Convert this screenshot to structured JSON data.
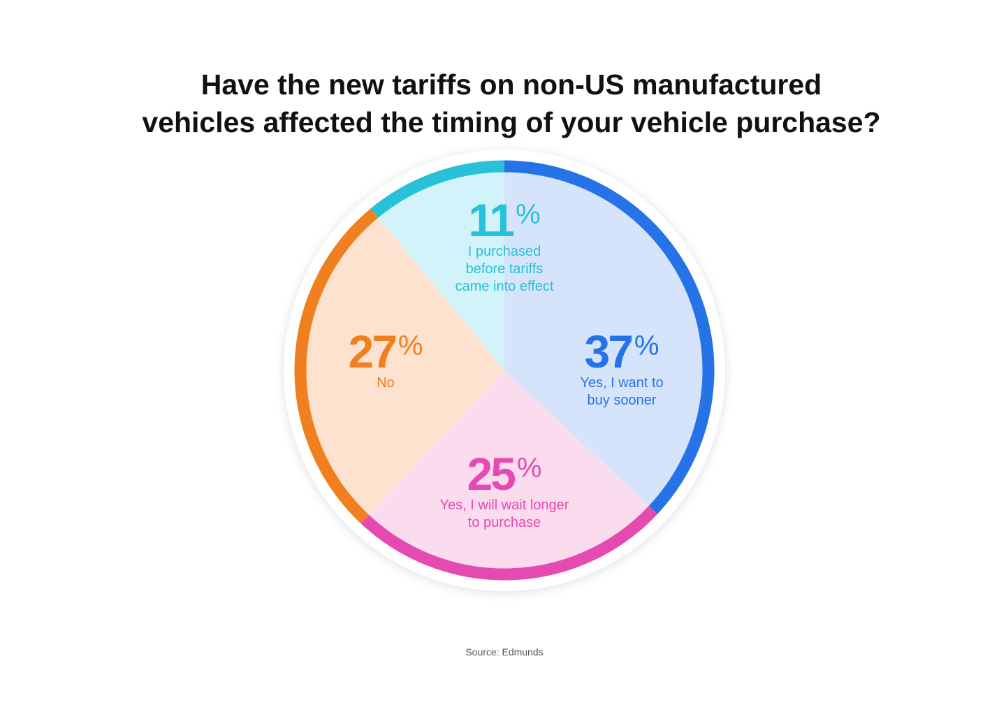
{
  "chart_data": {
    "type": "pie",
    "title": [
      "Have the new tariffs on non-US manufactured",
      "vehicles affected the timing of your vehicle purchase?"
    ],
    "start": "top, clockwise",
    "slices": [
      {
        "label": "Yes, I want to buy sooner",
        "label_lines": [
          "Yes, I want to",
          "buy sooner"
        ],
        "value": 37,
        "display": "37",
        "color": "#2673e8",
        "fill": "#d6e4fb"
      },
      {
        "label": "Yes, I will wait longer to purchase",
        "label_lines": [
          "Yes, I will wait longer",
          "to purchase"
        ],
        "value": 25,
        "display": "25",
        "color": "#e54ab0",
        "fill": "#fbdcef"
      },
      {
        "label": "No",
        "label_lines": [
          "No"
        ],
        "value": 27,
        "display": "27",
        "color": "#f07f1f",
        "fill": "#fde3cf"
      },
      {
        "label": "I purchased before tariffs came into effect",
        "label_lines": [
          "I purchased",
          "before tariffs",
          "came into effect"
        ],
        "value": 11,
        "display": "11",
        "color": "#27c1d8",
        "fill": "#d3f3fa"
      }
    ],
    "percent_sign": "%",
    "source": "Source: Edmunds"
  }
}
